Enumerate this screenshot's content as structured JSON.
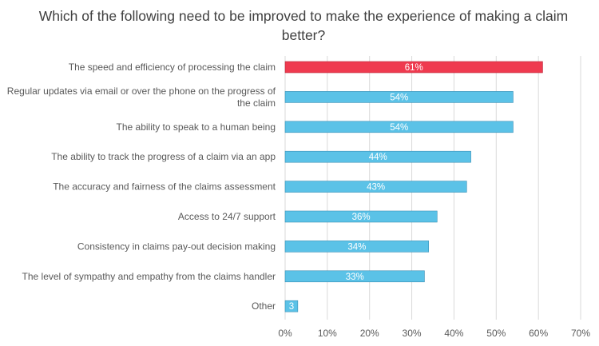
{
  "chart_data": {
    "type": "bar",
    "orientation": "horizontal",
    "title": "Which of the following need to be improved to make the experience of making a claim better?",
    "categories": [
      [
        "The speed and efficiency of processing the claim"
      ],
      [
        "Regular updates via email or over the phone on the progress of",
        "the claim"
      ],
      [
        "The ability to speak to a human being"
      ],
      [
        "The ability to track the progress of a claim via an app"
      ],
      [
        "The accuracy and fairness of the claims assessment"
      ],
      [
        "Access to 24/7 support"
      ],
      [
        "Consistency in claims pay-out decision making"
      ],
      [
        "The level of sympathy and empathy from the claims handler"
      ],
      [
        "Other"
      ]
    ],
    "values": [
      61,
      54,
      54,
      44,
      43,
      36,
      34,
      33,
      3
    ],
    "data_labels": [
      "61%",
      "54%",
      "54%",
      "44%",
      "43%",
      "36%",
      "34%",
      "33%",
      "3"
    ],
    "xlim": [
      0,
      70
    ],
    "x_ticks": [
      "0%",
      "10%",
      "20%",
      "30%",
      "40%",
      "50%",
      "60%",
      "70%"
    ],
    "grid": true,
    "colors": {
      "highlight": "#ef3a4f",
      "default": "#5bc2e7",
      "highlight_stroke": "#b8273a",
      "default_stroke": "#3a8fb5"
    },
    "highlight_index": 0
  }
}
